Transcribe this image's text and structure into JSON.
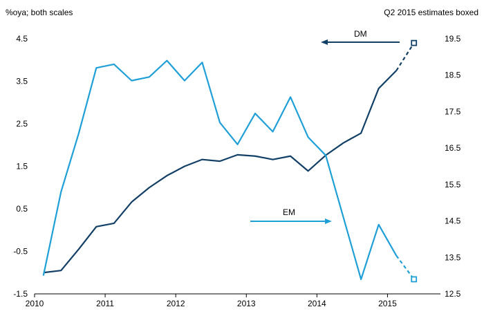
{
  "chart_data": {
    "type": "line",
    "left_axis_title": "%oya; both scales",
    "right_note": "Q2 2015 estimates boxed",
    "x_ticks": [
      "2010",
      "2011",
      "2012",
      "2013",
      "2014",
      "2015"
    ],
    "x_range": [
      2010,
      2015.75
    ],
    "y_left": {
      "ticks": [
        "4.5",
        "3.5",
        "2.5",
        "1.5",
        "0.5",
        "-0.5",
        "-1.5"
      ],
      "range": [
        -1.5,
        4.5
      ]
    },
    "y_right": {
      "ticks": [
        "19.5",
        "18.5",
        "17.5",
        "16.5",
        "15.5",
        "14.5",
        "13.5",
        "12.5"
      ],
      "range": [
        12.5,
        19.5
      ]
    },
    "series": [
      {
        "name": "DM",
        "axis": "left",
        "color": "#123f66",
        "points": [
          [
            2010.125,
            -1.0
          ],
          [
            2010.375,
            -0.95
          ],
          [
            2010.625,
            -0.45
          ],
          [
            2010.875,
            0.08
          ],
          [
            2011.125,
            0.16
          ],
          [
            2011.375,
            0.66
          ],
          [
            2011.625,
            1.0
          ],
          [
            2011.875,
            1.28
          ],
          [
            2012.125,
            1.5
          ],
          [
            2012.375,
            1.66
          ],
          [
            2012.625,
            1.62
          ],
          [
            2012.875,
            1.77
          ],
          [
            2013.125,
            1.74
          ],
          [
            2013.375,
            1.66
          ],
          [
            2013.625,
            1.74
          ],
          [
            2013.875,
            1.39
          ],
          [
            2014.125,
            1.76
          ],
          [
            2014.375,
            2.05
          ],
          [
            2014.625,
            2.28
          ],
          [
            2014.875,
            3.33
          ],
          [
            2015.125,
            3.75
          ]
        ],
        "estimate": [
          2015.375,
          4.4
        ],
        "label": "DM",
        "label_arrow_direction": "left",
        "label_axis": "left"
      },
      {
        "name": "EM",
        "axis": "right",
        "color": "#1f9fd8",
        "points": [
          [
            2010.125,
            13.0
          ],
          [
            2010.375,
            15.3
          ],
          [
            2010.625,
            16.9
          ],
          [
            2010.875,
            18.7
          ],
          [
            2011.125,
            18.8
          ],
          [
            2011.375,
            18.35
          ],
          [
            2011.625,
            18.45
          ],
          [
            2011.875,
            18.9
          ],
          [
            2012.125,
            18.35
          ],
          [
            2012.375,
            18.85
          ],
          [
            2012.625,
            17.2
          ],
          [
            2012.875,
            16.6
          ],
          [
            2013.125,
            17.45
          ],
          [
            2013.375,
            16.95
          ],
          [
            2013.625,
            17.9
          ],
          [
            2013.875,
            16.8
          ],
          [
            2014.125,
            16.3
          ],
          [
            2014.375,
            14.6
          ],
          [
            2014.625,
            12.9
          ],
          [
            2014.875,
            14.4
          ],
          [
            2015.125,
            13.55
          ]
        ],
        "estimate": [
          2015.375,
          12.9
        ],
        "label": "EM",
        "label_arrow_direction": "right",
        "label_axis": "right"
      }
    ]
  }
}
